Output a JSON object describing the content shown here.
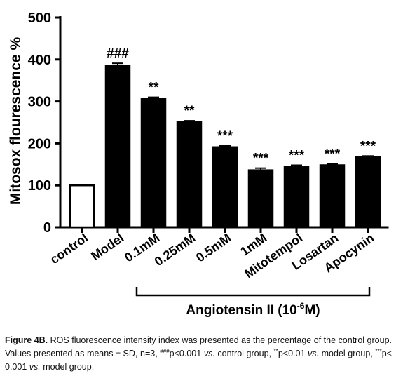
{
  "chart_data": {
    "type": "bar",
    "ylabel": "Mitosox flourescence %",
    "ylim": [
      0,
      500
    ],
    "yticks": [
      "0",
      "100",
      "200",
      "300",
      "400",
      "500"
    ],
    "ytick_values": [
      0,
      100,
      200,
      300,
      400,
      500
    ],
    "categories": [
      "control",
      "Model",
      "0.1mM",
      "0.25mM",
      "0.5mM",
      "1mM",
      "Mitotempol",
      "Losartan",
      "Apocynin"
    ],
    "values": [
      100,
      385,
      307,
      251,
      191,
      136,
      144,
      148,
      167
    ],
    "errors": [
      0,
      6,
      3,
      3,
      3,
      5,
      4,
      3,
      3
    ],
    "fills": [
      "#ffffff",
      "#000000",
      "#000000",
      "#000000",
      "#000000",
      "#000000",
      "#000000",
      "#000000",
      "#000000"
    ],
    "annotations": [
      "",
      "###",
      "**",
      "**",
      "***",
      "***",
      "***",
      "***",
      "***"
    ],
    "bracket_label_main": "Angiotensin II (10",
    "bracket_label_exp": "-6",
    "bracket_label_tail": "M)",
    "bracket_span": [
      "Model",
      "Apocynin"
    ],
    "grid": false,
    "legend": "none"
  },
  "caption": {
    "label": "Figure 4B.",
    "text1": " ROS fluorescence intensity index was presented as the percentage of the control group. Values presented as means ± SD, n=3, ",
    "sup1": "###",
    "text2": "p<0.001 ",
    "vs1": "vs.",
    "text3": " control group, ",
    "sup2": "**",
    "text4": "p<0.01 ",
    "vs2": "vs.",
    "text5": " model group, ",
    "sup3": "***",
    "text6": "p< 0.001 ",
    "vs3": "vs.",
    "text7": " model group."
  }
}
